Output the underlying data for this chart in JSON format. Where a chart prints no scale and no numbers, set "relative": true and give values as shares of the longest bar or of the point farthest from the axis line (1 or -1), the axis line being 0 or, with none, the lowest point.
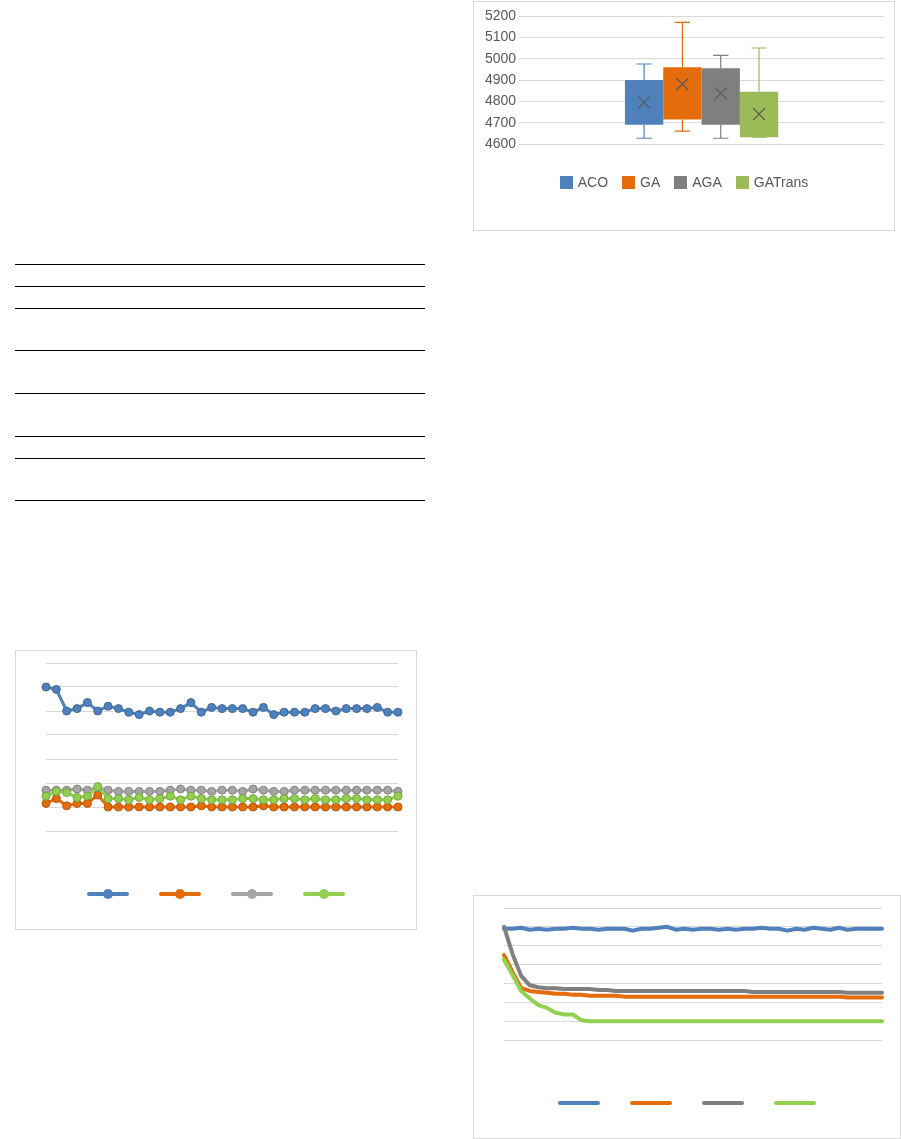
{
  "chart_data": [
    {
      "type": "box",
      "categories": [
        null
      ],
      "ylim": [
        4600,
        5200
      ],
      "yticks": [
        4600,
        4700,
        4800,
        4900,
        5000,
        5100,
        5200
      ],
      "grid": "y",
      "legend": "bottom",
      "series": [
        {
          "name": "ACO",
          "color": "#4f81bd",
          "boxes": [
            {
              "low": 4627,
              "q1": 4690,
              "median": 4765,
              "q3": 4900,
              "high": 4975,
              "mean": 4795
            }
          ]
        },
        {
          "name": "GA",
          "color": "#e46c0a",
          "boxes": [
            {
              "low": 4660,
              "q1": 4715,
              "median": 4915,
              "q3": 4960,
              "high": 5170,
              "mean": 4880
            }
          ]
        },
        {
          "name": "AGA",
          "color": "#7f7f7f",
          "boxes": [
            {
              "low": 4627,
              "q1": 4690,
              "median": 4915,
              "q3": 4955,
              "high": 5015,
              "mean": 4837
            }
          ]
        },
        {
          "name": "GATrans",
          "color": "#9bbb59",
          "boxes": [
            {
              "low": 4632,
              "q1": 4632,
              "median": 4675,
              "q3": 4845,
              "high": 5050,
              "mean": 4740
            }
          ]
        }
      ]
    },
    {
      "type": "line",
      "relative": true,
      "marker": "circle",
      "grid": "y",
      "categories": [
        null,
        null,
        null,
        null,
        null,
        null,
        null,
        null,
        null,
        null,
        null,
        null,
        null,
        null,
        null,
        null,
        null,
        null,
        null,
        null,
        null,
        null,
        null,
        null,
        null,
        null,
        null,
        null,
        null,
        null,
        null,
        null,
        null,
        null,
        null
      ],
      "series": [
        {
          "color": "#4f81bd",
          "values": [
            1.0,
            0.98,
            0.8,
            0.82,
            0.87,
            0.8,
            0.84,
            0.82,
            0.79,
            0.77,
            0.8,
            0.79,
            0.79,
            0.82,
            0.87,
            0.79,
            0.83,
            0.82,
            0.82,
            0.82,
            0.79,
            0.83,
            0.77,
            0.79,
            0.79,
            0.79,
            0.82,
            0.82,
            0.8,
            0.82,
            0.82,
            0.82,
            0.83,
            0.79,
            0.79
          ]
        },
        {
          "color": "#e46c0a",
          "values": [
            0.03,
            0.07,
            0.01,
            0.03,
            0.03,
            0.1,
            0,
            0,
            0,
            0,
            0,
            0,
            0,
            0,
            0,
            0.01,
            0,
            0,
            0,
            0,
            0,
            0.01,
            0,
            0,
            0,
            0,
            0,
            0,
            0,
            0,
            0,
            0,
            0,
            0,
            0
          ]
        },
        {
          "color": "#a5a5a5",
          "values": [
            0.14,
            0.14,
            0.14,
            0.15,
            0.14,
            0.16,
            0.14,
            0.13,
            0.13,
            0.13,
            0.13,
            0.13,
            0.14,
            0.15,
            0.14,
            0.14,
            0.13,
            0.14,
            0.14,
            0.13,
            0.15,
            0.14,
            0.13,
            0.13,
            0.14,
            0.14,
            0.14,
            0.14,
            0.14,
            0.14,
            0.14,
            0.14,
            0.14,
            0.14,
            0.13
          ]
        },
        {
          "color": "#92d050",
          "values": [
            0.09,
            0.13,
            0.12,
            0.08,
            0.09,
            0.17,
            0.07,
            0.07,
            0.06,
            0.08,
            0.06,
            0.07,
            0.09,
            0.06,
            0.09,
            0.07,
            0.06,
            0.06,
            0.06,
            0.07,
            0.07,
            0.06,
            0.06,
            0.07,
            0.07,
            0.06,
            0.07,
            0.06,
            0.06,
            0.07,
            0.07,
            0.06,
            0.06,
            0.06,
            0.09
          ]
        }
      ]
    },
    {
      "type": "line",
      "relative": true,
      "grid": "y",
      "categories": [
        null,
        null,
        null,
        null,
        null,
        null,
        null,
        null,
        null,
        null,
        null,
        null,
        null,
        null,
        null,
        null,
        null,
        null,
        null,
        null,
        null,
        null,
        null,
        null,
        null,
        null,
        null,
        null,
        null,
        null,
        null,
        null,
        null,
        null,
        null,
        null,
        null,
        null,
        null,
        null,
        null,
        null,
        null,
        null,
        null
      ],
      "series": [
        {
          "color": "#4f81bd",
          "values": [
            0.98,
            0.98,
            0.99,
            0.97,
            0.98,
            0.97,
            0.98,
            0.98,
            0.99,
            0.98,
            0.98,
            0.97,
            0.98,
            0.98,
            0.98,
            0.96,
            0.98,
            0.98,
            0.99,
            1.0,
            0.97,
            0.98,
            0.97,
            0.98,
            0.98,
            0.97,
            0.98,
            0.97,
            0.98,
            0.98,
            0.99,
            0.98,
            0.98,
            0.96,
            0.98,
            0.97,
            0.99,
            0.98,
            0.97,
            0.99,
            0.97,
            0.98,
            0.98,
            0.98,
            0.98
          ]
        },
        {
          "color": "#e46c0a",
          "values": [
            0.7,
            0.52,
            0.35,
            0.32,
            0.31,
            0.3,
            0.29,
            0.29,
            0.28,
            0.28,
            0.27,
            0.27,
            0.27,
            0.27,
            0.26,
            0.26,
            0.26,
            0.26,
            0.26,
            0.26,
            0.26,
            0.26,
            0.26,
            0.26,
            0.26,
            0.26,
            0.26,
            0.26,
            0.26,
            0.26,
            0.26,
            0.26,
            0.26,
            0.26,
            0.26,
            0.26,
            0.26,
            0.26,
            0.26,
            0.26,
            0.25,
            0.25,
            0.25,
            0.25,
            0.25
          ]
        },
        {
          "color": "#7f7f7f",
          "values": [
            1.0,
            0.71,
            0.48,
            0.38,
            0.36,
            0.35,
            0.35,
            0.34,
            0.34,
            0.34,
            0.34,
            0.33,
            0.33,
            0.32,
            0.32,
            0.32,
            0.32,
            0.32,
            0.32,
            0.32,
            0.32,
            0.32,
            0.32,
            0.32,
            0.32,
            0.32,
            0.32,
            0.32,
            0.32,
            0.31,
            0.31,
            0.31,
            0.31,
            0.31,
            0.31,
            0.31,
            0.31,
            0.31,
            0.31,
            0.31,
            0.3,
            0.3,
            0.3,
            0.3,
            0.3
          ]
        },
        {
          "color": "#92d050",
          "values": [
            0.65,
            0.49,
            0.32,
            0.24,
            0.17,
            0.14,
            0.09,
            0.07,
            0.07,
            0.01,
            0,
            0,
            0,
            0,
            0,
            0,
            0,
            0,
            0,
            0,
            0,
            0,
            0,
            0,
            0,
            0,
            0,
            0,
            0,
            0,
            0,
            0,
            0,
            0,
            0,
            0,
            0,
            0,
            0,
            0,
            0,
            0,
            0,
            0,
            0
          ]
        }
      ]
    }
  ]
}
